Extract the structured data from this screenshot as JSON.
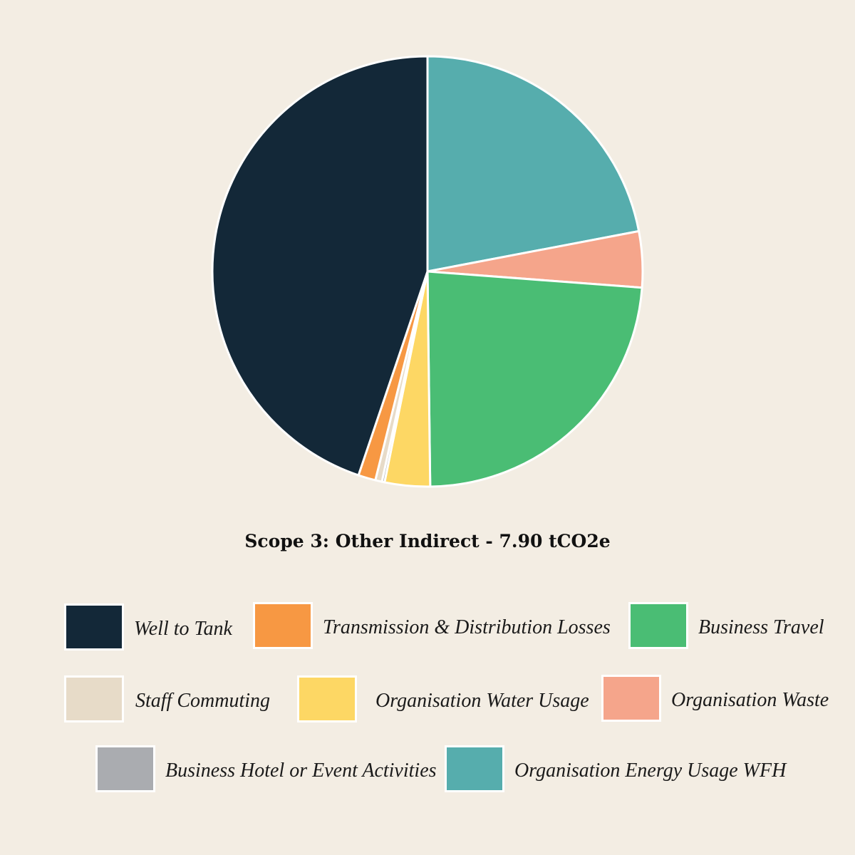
{
  "chart_data": {
    "type": "pie",
    "title": "Scope 3: Other Indirect - 7.90 tCO2e",
    "unit": "%",
    "slices": [
      {
        "name": "Organisation Energy Usage WFH",
        "value": 22.0,
        "color": "#56adad"
      },
      {
        "name": "Organisation Waste",
        "value": 4.2,
        "color": "#f5a58b"
      },
      {
        "name": "Business Travel",
        "value": 23.6,
        "color": "#4abd74"
      },
      {
        "name": "Organisation Water Usage",
        "value": 3.4,
        "color": "#fdd764"
      },
      {
        "name": "Business Hotel or Event Activities",
        "value": 0.2,
        "color": "#aaacb0"
      },
      {
        "name": "Staff Commuting",
        "value": 0.5,
        "color": "#e7dbc8"
      },
      {
        "name": "Transmission & Distribution Losses",
        "value": 1.3,
        "color": "#f79843"
      },
      {
        "name": "Well to Tank",
        "value": 44.8,
        "color": "#132838"
      }
    ],
    "legend": [
      {
        "label": "Well to Tank",
        "color": "#132838"
      },
      {
        "label": "Transmission & Distribution Losses",
        "color": "#f79843"
      },
      {
        "label": "Business Travel",
        "color": "#4abd74"
      },
      {
        "label": "Staff Commuting",
        "color": "#e7dbc8"
      },
      {
        "label": "Organisation Water Usage",
        "color": "#fdd764"
      },
      {
        "label": "Organisation Waste",
        "color": "#f5a58b"
      },
      {
        "label": "Business Hotel or Event Activities",
        "color": "#aaacb0"
      },
      {
        "label": "Organisation Energy Usage WFH",
        "color": "#56adad"
      }
    ],
    "legend_position": "bottom"
  }
}
